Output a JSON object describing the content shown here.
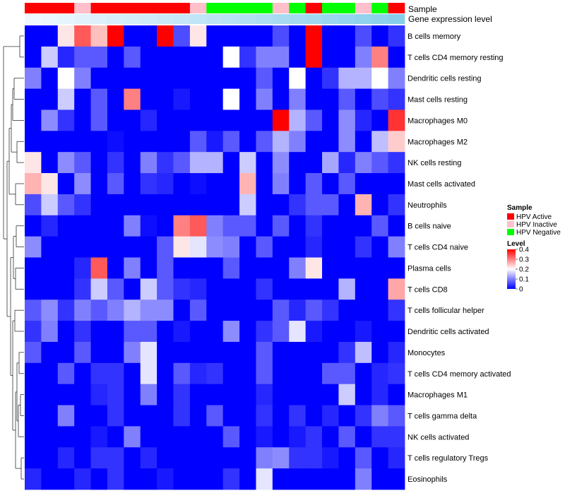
{
  "chart_data": {
    "type": "heatmap",
    "annotation_rows": [
      "Sample",
      "Gene expression level"
    ],
    "row_labels": [
      "B cells memory",
      "T cells CD4 memory resting",
      "Dendritic cells resting",
      "Mast cells resting",
      "Macrophages M0",
      "Macrophages M2",
      "NK cells resting",
      "Mast cells activated",
      "Neutrophils",
      "B cells naive",
      "T cells CD4 naive",
      "Plasma cells",
      "T cells CD8",
      "T cells follicular helper",
      "Dendritic cells activated",
      "Monocytes",
      "T cells CD4 memory activated",
      "Macrophages M1",
      "T cells gamma delta",
      "NK cells activated",
      "T cells regulatory  Tregs",
      "Eosinophils"
    ],
    "sample_groups": [
      "HPV Active",
      "HPV Active",
      "HPV Active",
      "HPV Inactive",
      "HPV Active",
      "HPV Active",
      "HPV Active",
      "HPV Active",
      "HPV Active",
      "HPV Active",
      "HPV Inactive",
      "HPV Negative",
      "HPV Negative",
      "HPV Negative",
      "HPV Negative",
      "HPV Inactive",
      "HPV Negative",
      "HPV Active",
      "HPV Negative",
      "HPV Negative",
      "HPV Inactive",
      "HPV Negative",
      "HPV Active"
    ],
    "expression_levels": [
      0.02,
      0.04,
      0.06,
      0.08,
      0.1,
      0.12,
      0.14,
      0.16,
      0.18,
      0.2,
      0.22,
      0.24,
      0.26,
      0.28,
      0.3,
      0.32,
      0.34,
      0.36,
      0.38,
      0.4,
      0.42,
      0.44,
      0.46
    ],
    "values": [
      [
        0.0,
        0.0,
        0.22,
        0.33,
        0.25,
        0.4,
        0.0,
        0.0,
        0.4,
        0.06,
        0.22,
        0.0,
        0.0,
        0.0,
        0.0,
        0.06,
        0.0,
        0.4,
        0.0,
        0.0,
        0.06,
        0.0,
        0.04
      ],
      [
        0.0,
        0.16,
        0.03,
        0.07,
        0.07,
        0.0,
        0.07,
        0.0,
        0.0,
        0.0,
        0.0,
        0.0,
        0.2,
        0.04,
        0.1,
        0.1,
        0.0,
        0.4,
        0.0,
        0.0,
        0.1,
        0.3,
        0.0
      ],
      [
        0.1,
        0.0,
        0.2,
        0.1,
        0.0,
        0.0,
        0.0,
        0.0,
        0.0,
        0.0,
        0.0,
        0.0,
        0.0,
        0.0,
        0.07,
        0.0,
        0.2,
        0.0,
        0.04,
        0.14,
        0.14,
        0.2,
        0.1
      ],
      [
        0.0,
        0.0,
        0.16,
        0.0,
        0.07,
        0.0,
        0.3,
        0.0,
        0.0,
        0.02,
        0.0,
        0.0,
        0.2,
        0.0,
        0.1,
        0.0,
        0.1,
        0.0,
        0.0,
        0.07,
        0.0,
        0.06,
        0.04
      ],
      [
        0.0,
        0.11,
        0.04,
        0.0,
        0.07,
        0.0,
        0.0,
        0.03,
        0.0,
        0.0,
        0.0,
        0.0,
        0.0,
        0.0,
        0.0,
        0.4,
        0.14,
        0.07,
        0.0,
        0.11,
        0.03,
        0.0,
        0.36
      ],
      [
        0.0,
        0.0,
        0.0,
        0.0,
        0.0,
        0.01,
        0.0,
        0.0,
        0.0,
        0.0,
        0.07,
        0.02,
        0.07,
        0.0,
        0.07,
        0.14,
        0.1,
        0.0,
        0.0,
        0.11,
        0.0,
        0.15,
        0.24
      ],
      [
        0.22,
        0.0,
        0.11,
        0.07,
        0.0,
        0.04,
        0.0,
        0.1,
        0.04,
        0.07,
        0.14,
        0.14,
        0.0,
        0.16,
        0.0,
        0.11,
        0.0,
        0.0,
        0.13,
        0.03,
        0.1,
        0.07,
        0.04
      ],
      [
        0.26,
        0.22,
        0.0,
        0.11,
        0.0,
        0.07,
        0.0,
        0.04,
        0.03,
        0.0,
        0.01,
        0.0,
        0.0,
        0.26,
        0.0,
        0.1,
        0.0,
        0.07,
        0.0,
        0.07,
        0.0,
        0.0,
        0.0
      ],
      [
        0.06,
        0.16,
        0.07,
        0.04,
        0.0,
        0.0,
        0.0,
        0.0,
        0.0,
        0.0,
        0.0,
        0.0,
        0.0,
        0.16,
        0.0,
        0.0,
        0.04,
        0.07,
        0.07,
        0.0,
        0.26,
        0.0,
        0.04
      ],
      [
        0.0,
        0.03,
        0.0,
        0.0,
        0.0,
        0.0,
        0.1,
        0.01,
        0.0,
        0.3,
        0.33,
        0.1,
        0.07,
        0.07,
        0.0,
        0.07,
        0.0,
        0.04,
        0.0,
        0.0,
        0.0,
        0.07,
        0.0
      ],
      [
        0.11,
        0.0,
        0.0,
        0.0,
        0.0,
        0.0,
        0.0,
        0.0,
        0.07,
        0.22,
        0.18,
        0.11,
        0.1,
        0.0,
        0.07,
        0.0,
        0.0,
        0.03,
        0.0,
        0.0,
        0.04,
        0.0,
        0.1
      ],
      [
        0.0,
        0.0,
        0.0,
        0.03,
        0.33,
        0.0,
        0.1,
        0.0,
        0.07,
        0.0,
        0.0,
        0.0,
        0.07,
        0.0,
        0.0,
        0.0,
        0.1,
        0.22,
        0.0,
        0.0,
        0.0,
        0.0,
        0.0
      ],
      [
        0.0,
        0.0,
        0.0,
        0.04,
        0.16,
        0.07,
        0.0,
        0.16,
        0.07,
        0.04,
        0.03,
        0.0,
        0.0,
        0.0,
        0.04,
        0.0,
        0.0,
        0.0,
        0.0,
        0.14,
        0.0,
        0.0,
        0.27
      ],
      [
        0.07,
        0.11,
        0.04,
        0.1,
        0.07,
        0.1,
        0.14,
        0.11,
        0.11,
        0.0,
        0.07,
        0.0,
        0.0,
        0.0,
        0.0,
        0.07,
        0.03,
        0.07,
        0.04,
        0.0,
        0.0,
        0.0,
        0.04
      ],
      [
        0.04,
        0.1,
        0.0,
        0.04,
        0.0,
        0.0,
        0.07,
        0.07,
        0.0,
        0.02,
        0.0,
        0.0,
        0.11,
        0.0,
        0.04,
        0.07,
        0.18,
        0.02,
        0.0,
        0.0,
        0.02,
        0.0,
        0.0
      ],
      [
        0.07,
        0.0,
        0.0,
        0.07,
        0.0,
        0.0,
        0.1,
        0.18,
        0.0,
        0.0,
        0.0,
        0.0,
        0.0,
        0.0,
        0.07,
        0.0,
        0.0,
        0.0,
        0.0,
        0.04,
        0.15,
        0.0,
        0.03
      ],
      [
        0.0,
        0.0,
        0.07,
        0.0,
        0.04,
        0.04,
        0.0,
        0.18,
        0.0,
        0.07,
        0.03,
        0.04,
        0.0,
        0.0,
        0.07,
        0.0,
        0.0,
        0.0,
        0.07,
        0.07,
        0.0,
        0.03,
        0.04
      ],
      [
        0.0,
        0.0,
        0.0,
        0.0,
        0.03,
        0.04,
        0.0,
        0.1,
        0.0,
        0.04,
        0.0,
        0.0,
        0.0,
        0.0,
        0.03,
        0.0,
        0.0,
        0.0,
        0.0,
        0.16,
        0.0,
        0.03,
        0.0
      ],
      [
        0.0,
        0.0,
        0.1,
        0.0,
        0.0,
        0.04,
        0.0,
        0.0,
        0.0,
        0.04,
        0.0,
        0.07,
        0.0,
        0.0,
        0.04,
        0.0,
        0.04,
        0.0,
        0.03,
        0.0,
        0.04,
        0.1,
        0.07
      ],
      [
        0.0,
        0.0,
        0.0,
        0.0,
        0.02,
        0.0,
        0.1,
        0.0,
        0.0,
        0.0,
        0.0,
        0.0,
        0.07,
        0.0,
        0.02,
        0.0,
        0.02,
        0.04,
        0.0,
        0.07,
        0.0,
        0.04,
        0.04
      ],
      [
        0.0,
        0.0,
        0.03,
        0.0,
        0.04,
        0.04,
        0.0,
        0.03,
        0.0,
        0.0,
        0.0,
        0.0,
        0.0,
        0.0,
        0.1,
        0.11,
        0.04,
        0.04,
        0.02,
        0.0,
        0.07,
        0.0,
        0.03
      ],
      [
        0.03,
        0.0,
        0.0,
        0.03,
        0.0,
        0.04,
        0.0,
        0.0,
        0.02,
        0.0,
        0.0,
        0.0,
        0.04,
        0.0,
        0.18,
        0.0,
        0.0,
        0.0,
        0.0,
        0.0,
        0.1,
        0.0,
        0.0
      ]
    ],
    "legend": {
      "sample_title": "Sample",
      "sample_entries": [
        {
          "label": "HPV Active",
          "color": "#ff0000"
        },
        {
          "label": "HPV Inactive",
          "color": "#ffc0cb"
        },
        {
          "label": "HPV Negative",
          "color": "#00ff00"
        }
      ],
      "level_title": "Level",
      "level_ticks": [
        {
          "label": "0.4",
          "value": 0.4
        },
        {
          "label": "0.3",
          "value": 0.3
        },
        {
          "label": "0.2",
          "value": 0.2
        },
        {
          "label": "0.1",
          "value": 0.1
        },
        {
          "label": "0",
          "value": 0.0
        }
      ]
    },
    "color_scale": {
      "low": "#0000ff",
      "mid": "#ffffff",
      "high": "#ff0000",
      "min": 0,
      "mid_value": 0.2,
      "max": 0.4
    },
    "expression_color_scale": {
      "low": "#f0f8ff",
      "high": "#87ceeb"
    }
  }
}
